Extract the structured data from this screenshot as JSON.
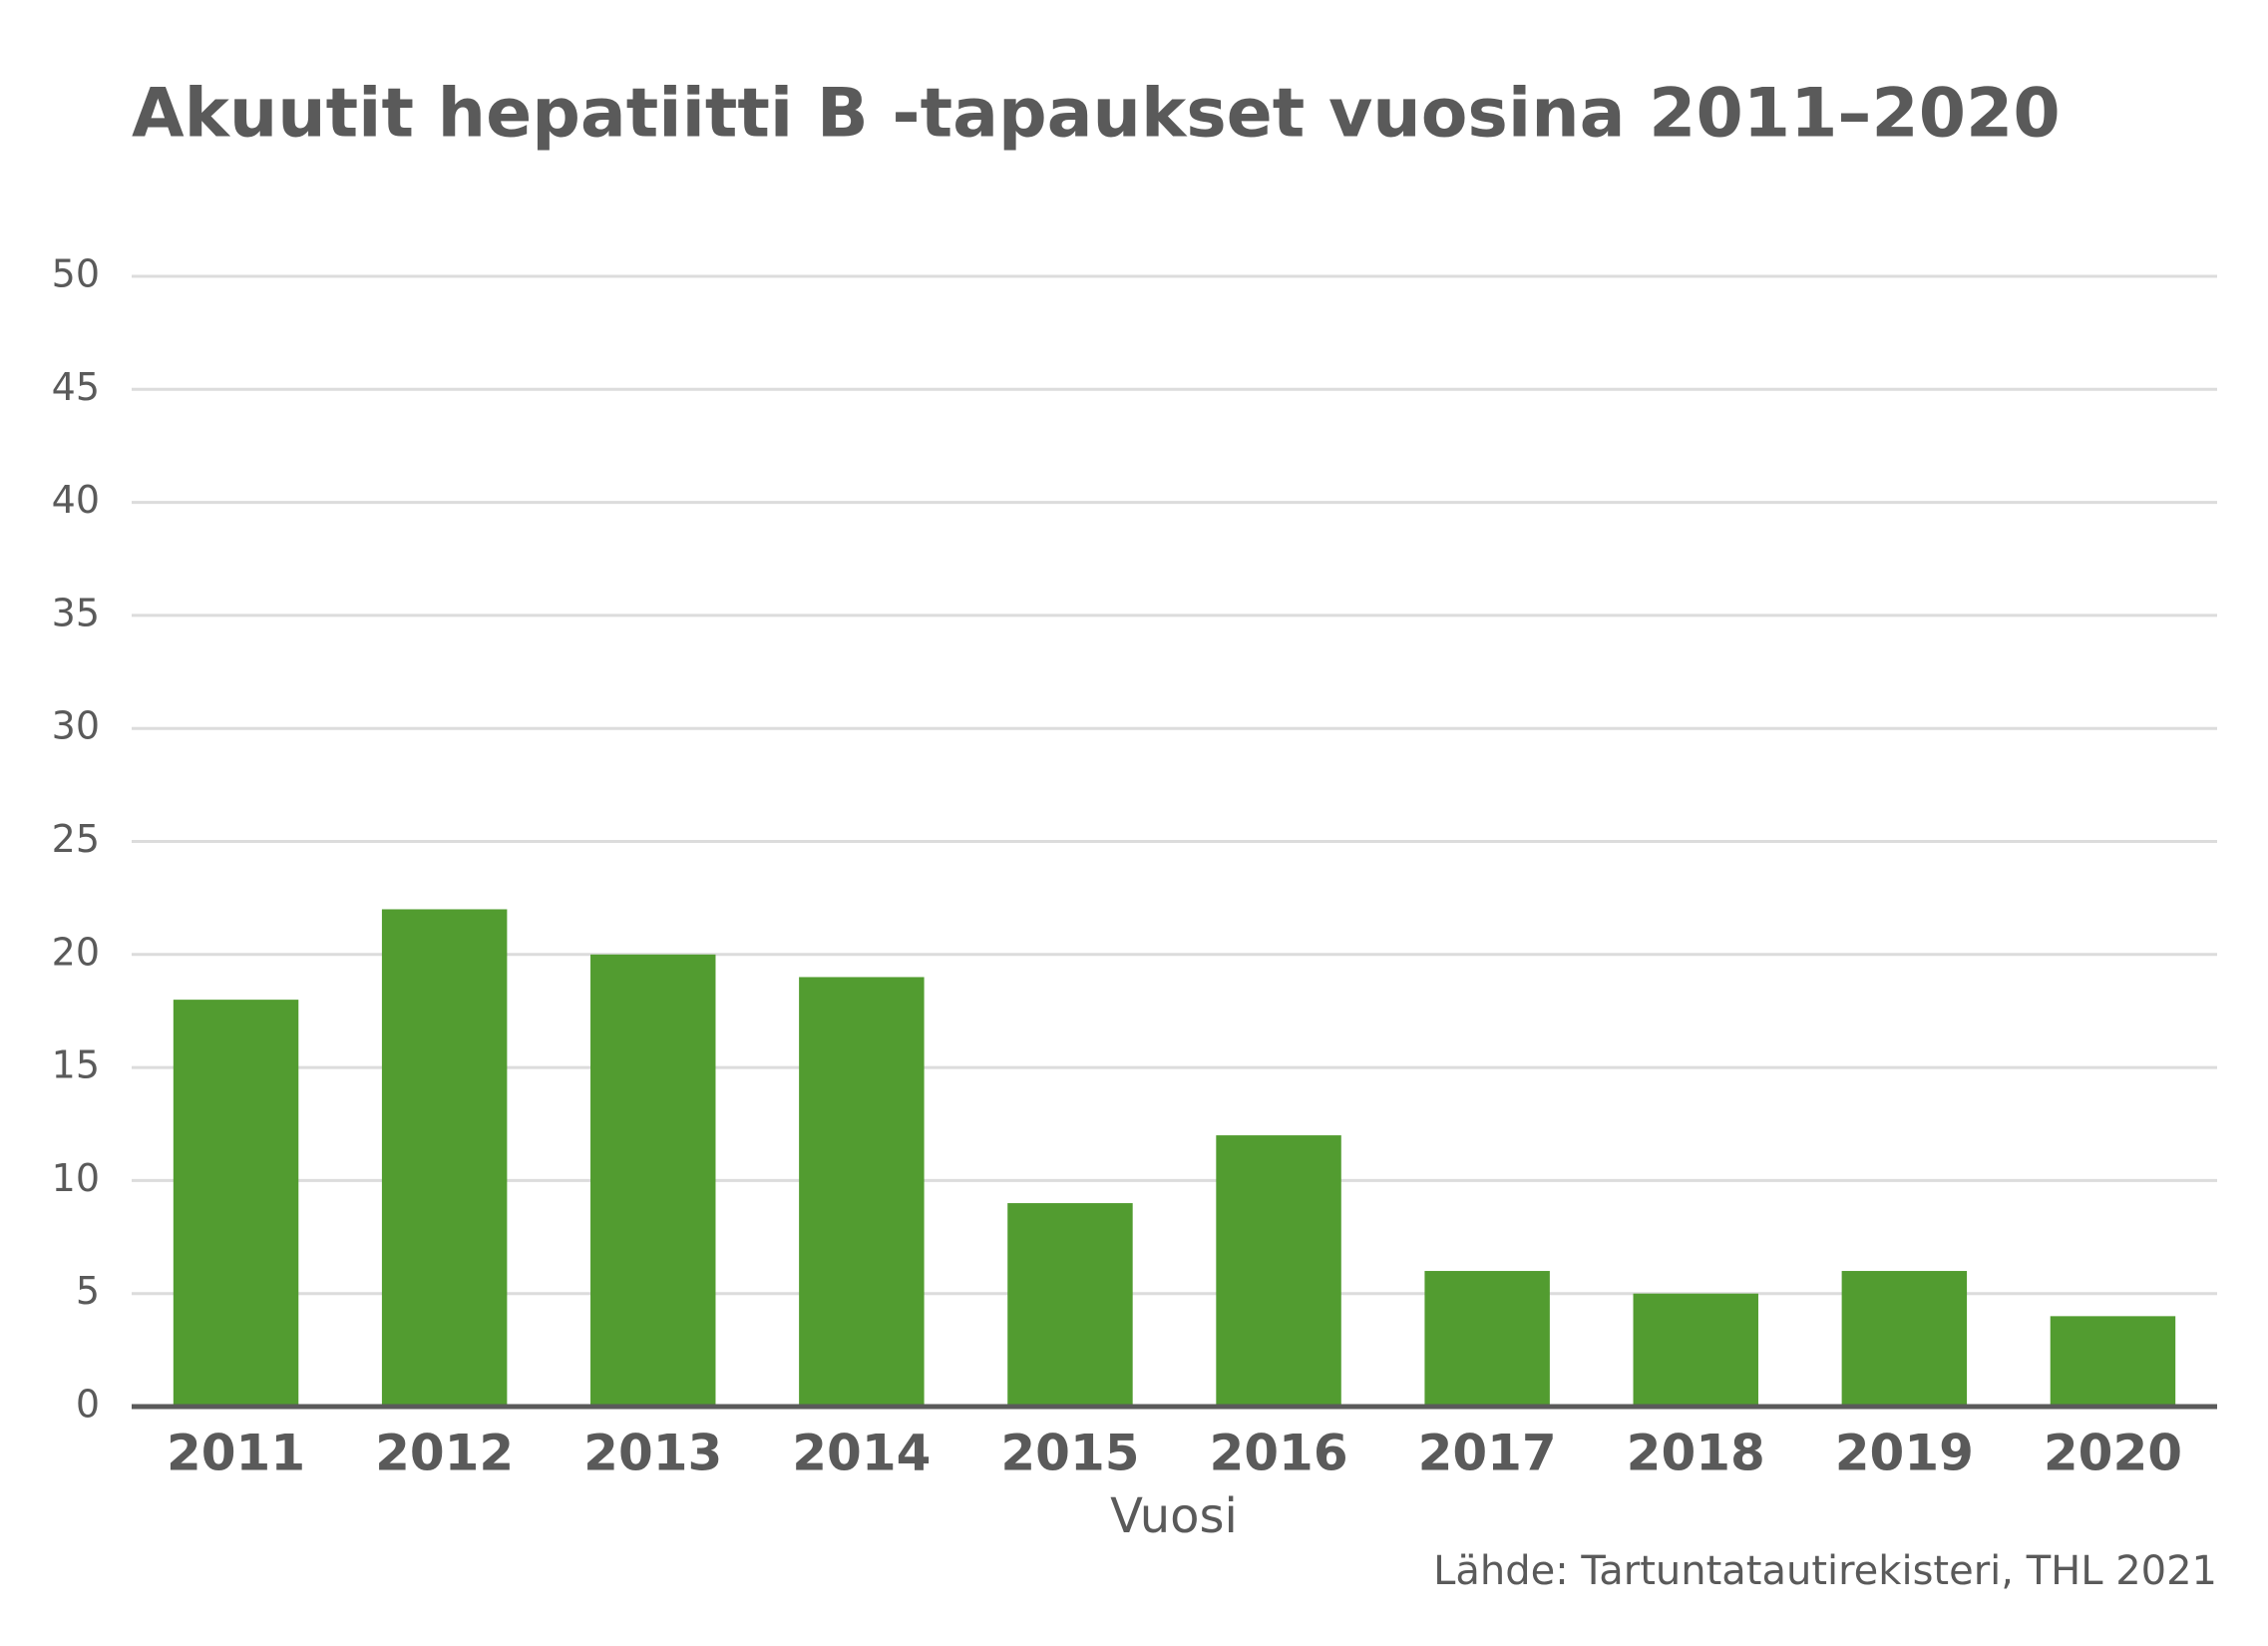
{
  "chart_data": {
    "type": "bar",
    "title": "Akuutit hepatiitti B -tapaukset vuosina 2011–2020",
    "x_label": "Vuosi",
    "source": "Lähde: Tartuntatautirekisteri, THL 2021",
    "categories": [
      "2011",
      "2012",
      "2013",
      "2014",
      "2015",
      "2016",
      "2017",
      "2018",
      "2019",
      "2020"
    ],
    "values": [
      18,
      22,
      20,
      19,
      9,
      12,
      6,
      5,
      6,
      4
    ],
    "color": "#529c30",
    "ylim": [
      0,
      50
    ],
    "yticks": [
      0,
      5,
      10,
      15,
      20,
      25,
      30,
      35,
      40,
      45,
      50
    ],
    "grid": true
  }
}
